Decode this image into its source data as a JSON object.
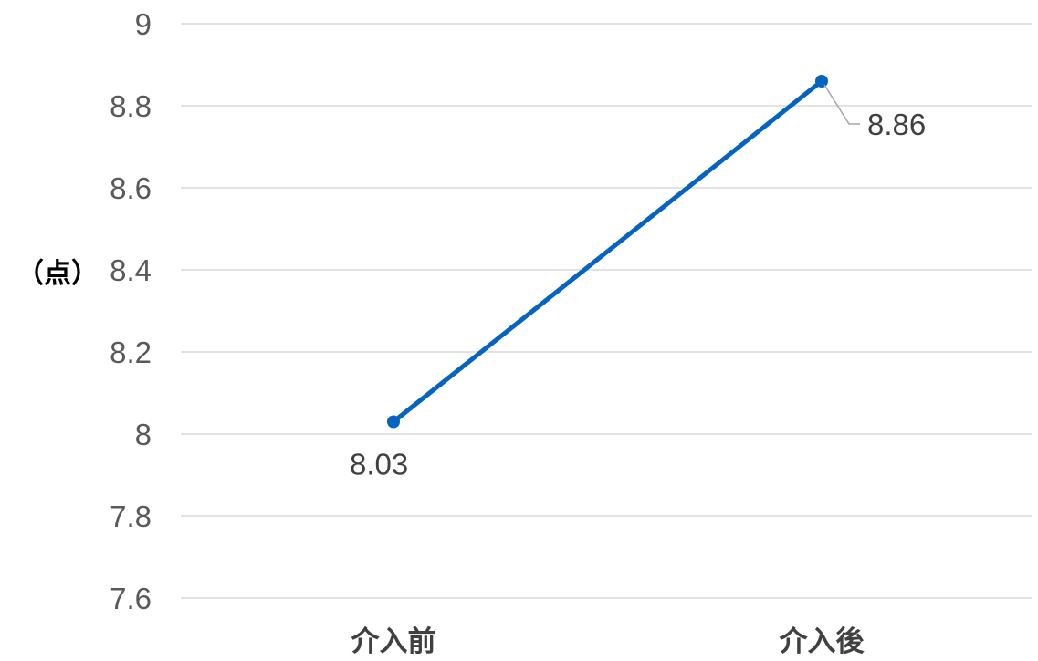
{
  "chart_data": {
    "type": "line",
    "categories": [
      "介入前",
      "介入後"
    ],
    "series": [
      {
        "values": [
          8.03,
          8.86
        ],
        "color": "#0563C1"
      }
    ],
    "data_labels": [
      "8.03",
      "8.86"
    ],
    "ylabel": "（点）",
    "ylim": [
      7.6,
      9
    ],
    "yticks": [
      7.6,
      7.8,
      8,
      8.2,
      8.4,
      8.6,
      8.8,
      9
    ],
    "ytick_labels": [
      "7.6",
      "7.8",
      "8",
      "8.2",
      "8.4",
      "8.6",
      "8.8",
      "9"
    ],
    "grid": true,
    "gridline_color": "#D9D9D9",
    "legend": "none"
  }
}
